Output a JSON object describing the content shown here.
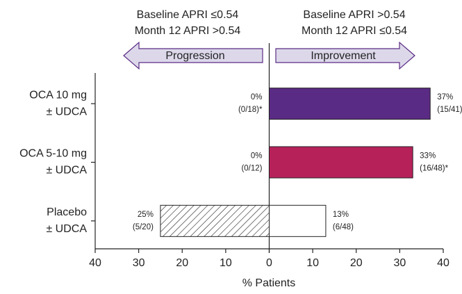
{
  "chart_data": {
    "type": "diverging-bar",
    "directions": [
      {
        "label": "Progression",
        "lines": [
          "Baseline APRI ≤0.54",
          "Month 12 APRI >0.54"
        ]
      },
      {
        "label": "Improvement",
        "lines": [
          "Baseline APRI >0.54",
          "Month 12 APRI ≤0.54"
        ]
      }
    ],
    "categories": [
      [
        "OCA 10 mg",
        "± UDCA"
      ],
      [
        "OCA 5-10 mg",
        "± UDCA"
      ],
      [
        "Placebo",
        "± UDCA"
      ]
    ],
    "series": [
      {
        "name": "Progression",
        "pattern": "hatch",
        "values": [
          0,
          0,
          -25
        ],
        "value_labels": [
          "0%",
          "0%",
          "25%"
        ],
        "counts": [
          "(0/18)*",
          "(0/12)",
          "(5/20)"
        ]
      },
      {
        "name": "Improvement",
        "colors": [
          "#5a2b84",
          "#b7215a",
          "#ffffff"
        ],
        "values": [
          37,
          33,
          13
        ],
        "value_labels": [
          "37%",
          "33%",
          "13%"
        ],
        "counts": [
          "(15/41)**",
          "(16/48)*",
          "(6/48)"
        ]
      }
    ],
    "xlabel": "% Patients",
    "xlim": [
      -40,
      40
    ],
    "xticks": [
      {
        "value": -40,
        "label": "40"
      },
      {
        "value": -30,
        "label": "30"
      },
      {
        "value": -20,
        "label": "20"
      },
      {
        "value": -10,
        "label": "10"
      },
      0,
      10,
      20,
      30,
      40
    ]
  }
}
